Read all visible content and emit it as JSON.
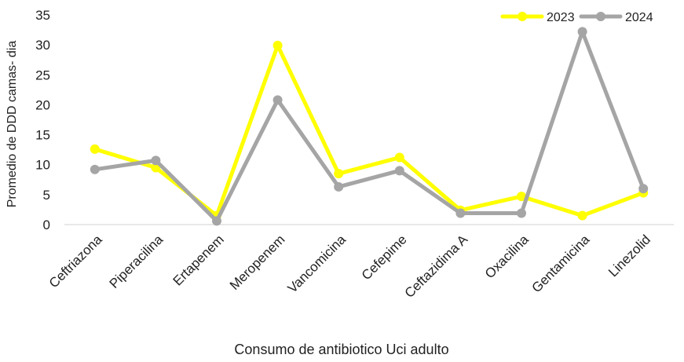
{
  "chart_data": {
    "type": "line",
    "title": "",
    "xlabel": "Consumo de antibiotico Uci adulto",
    "ylabel": "Promedio de DDD  camas- dia",
    "ylim": [
      0,
      35
    ],
    "yticks": [
      0,
      5,
      10,
      15,
      20,
      25,
      30,
      35
    ],
    "grid": false,
    "legend_position": "top-right",
    "categories": [
      "Ceftriazona",
      "Piperacilina",
      "Ertapenem",
      "Meropenem",
      "Vancomicina",
      "Cefepime",
      "Ceftazidima A",
      "Oxacilina",
      "Gentamicina",
      "Linezolid"
    ],
    "series": [
      {
        "name": "2023",
        "color": "#ffff00",
        "values": [
          12.6,
          9.5,
          1.5,
          29.9,
          8.5,
          11.2,
          2.4,
          4.7,
          1.5,
          5.3
        ]
      },
      {
        "name": "2024",
        "color": "#a5a5a5",
        "values": [
          9.2,
          10.7,
          0.6,
          20.8,
          6.3,
          9.0,
          1.9,
          1.9,
          32.2,
          6.0
        ]
      }
    ]
  }
}
